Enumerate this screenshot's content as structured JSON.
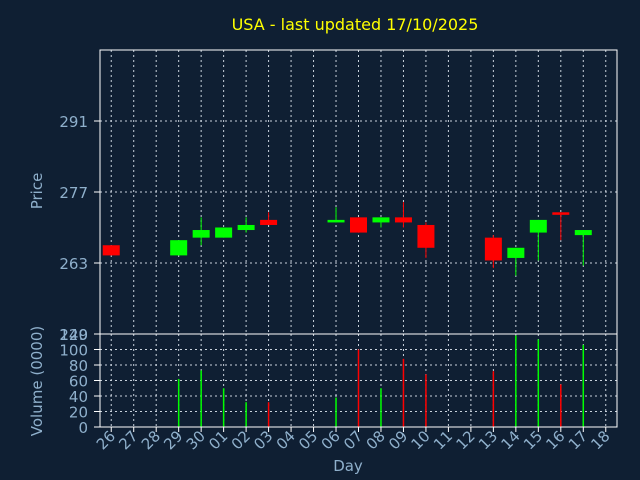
{
  "colors": {
    "background": "#0f1f33",
    "frame": "#ffffff",
    "grid": "#c8d2dc",
    "text": "#8fb0cc",
    "title": "#ffff00",
    "up": "#00ff00",
    "down": "#ff0000"
  },
  "chart_data": [
    {
      "type": "candlestick",
      "title": "USA - last updated 17/10/2025",
      "ylabel": "Price",
      "ylim": [
        249,
        305
      ],
      "yticks": [
        249,
        263,
        277,
        291
      ],
      "grid": true,
      "categories": [
        "26",
        "27",
        "28",
        "29",
        "30",
        "01",
        "02",
        "03",
        "04",
        "05",
        "06",
        "07",
        "08",
        "09",
        "10",
        "11",
        "12",
        "13",
        "14",
        "15",
        "16",
        "17",
        "18"
      ],
      "candles": [
        {
          "x": "26",
          "open": 266.5,
          "close": 264.5,
          "high": 266.5,
          "low": 264.5
        },
        {
          "x": "29",
          "open": 264.5,
          "close": 267.5,
          "high": 267.5,
          "low": 264.5
        },
        {
          "x": "30",
          "open": 268.0,
          "close": 269.5,
          "high": 272.0,
          "low": 266.5
        },
        {
          "x": "01",
          "open": 268.0,
          "close": 270.0,
          "high": 270.0,
          "low": 268.0
        },
        {
          "x": "02",
          "open": 269.5,
          "close": 270.5,
          "high": 272.0,
          "low": 269.0
        },
        {
          "x": "03",
          "open": 271.5,
          "close": 270.5,
          "high": 273.0,
          "low": 270.5
        },
        {
          "x": "06",
          "open": 271.0,
          "close": 271.5,
          "high": 274.0,
          "low": 271.0
        },
        {
          "x": "07",
          "open": 272.0,
          "close": 269.0,
          "high": 272.0,
          "low": 269.0
        },
        {
          "x": "08",
          "open": 271.0,
          "close": 272.0,
          "high": 272.0,
          "low": 270.0
        },
        {
          "x": "09",
          "open": 272.0,
          "close": 271.0,
          "high": 275.0,
          "low": 270.0
        },
        {
          "x": "10",
          "open": 270.5,
          "close": 266.0,
          "high": 271.0,
          "low": 264.0
        },
        {
          "x": "13",
          "open": 268.0,
          "close": 263.5,
          "high": 268.5,
          "low": 262.0
        },
        {
          "x": "14",
          "open": 264.0,
          "close": 266.0,
          "high": 266.0,
          "low": 260.5
        },
        {
          "x": "15",
          "open": 269.0,
          "close": 271.5,
          "high": 271.5,
          "low": 263.5
        },
        {
          "x": "16",
          "open": 273.0,
          "close": 272.5,
          "high": 273.0,
          "low": 267.5
        },
        {
          "x": "17",
          "open": 268.5,
          "close": 269.5,
          "high": 269.5,
          "low": 262.5
        }
      ]
    },
    {
      "type": "bar",
      "ylabel": "Volume (0000)",
      "xlabel": "Day",
      "ylim": [
        0,
        120
      ],
      "yticks": [
        0,
        20,
        40,
        60,
        80,
        100,
        120
      ],
      "grid": true,
      "categories": [
        "26",
        "27",
        "28",
        "29",
        "30",
        "01",
        "02",
        "03",
        "04",
        "05",
        "06",
        "07",
        "08",
        "09",
        "10",
        "11",
        "12",
        "13",
        "14",
        "15",
        "16",
        "17",
        "18"
      ],
      "bars": [
        {
          "x": "29",
          "value": 62,
          "direction": "up"
        },
        {
          "x": "30",
          "value": 73,
          "direction": "up"
        },
        {
          "x": "01",
          "value": 50,
          "direction": "up"
        },
        {
          "x": "02",
          "value": 32,
          "direction": "up"
        },
        {
          "x": "03",
          "value": 32,
          "direction": "down"
        },
        {
          "x": "06",
          "value": 38,
          "direction": "up"
        },
        {
          "x": "07",
          "value": 100,
          "direction": "down"
        },
        {
          "x": "08",
          "value": 50,
          "direction": "up"
        },
        {
          "x": "09",
          "value": 88,
          "direction": "down"
        },
        {
          "x": "10",
          "value": 68,
          "direction": "down"
        },
        {
          "x": "13",
          "value": 72,
          "direction": "down"
        },
        {
          "x": "14",
          "value": 118,
          "direction": "up"
        },
        {
          "x": "15",
          "value": 113,
          "direction": "up"
        },
        {
          "x": "16",
          "value": 55,
          "direction": "down"
        },
        {
          "x": "17",
          "value": 106,
          "direction": "up"
        }
      ]
    }
  ]
}
